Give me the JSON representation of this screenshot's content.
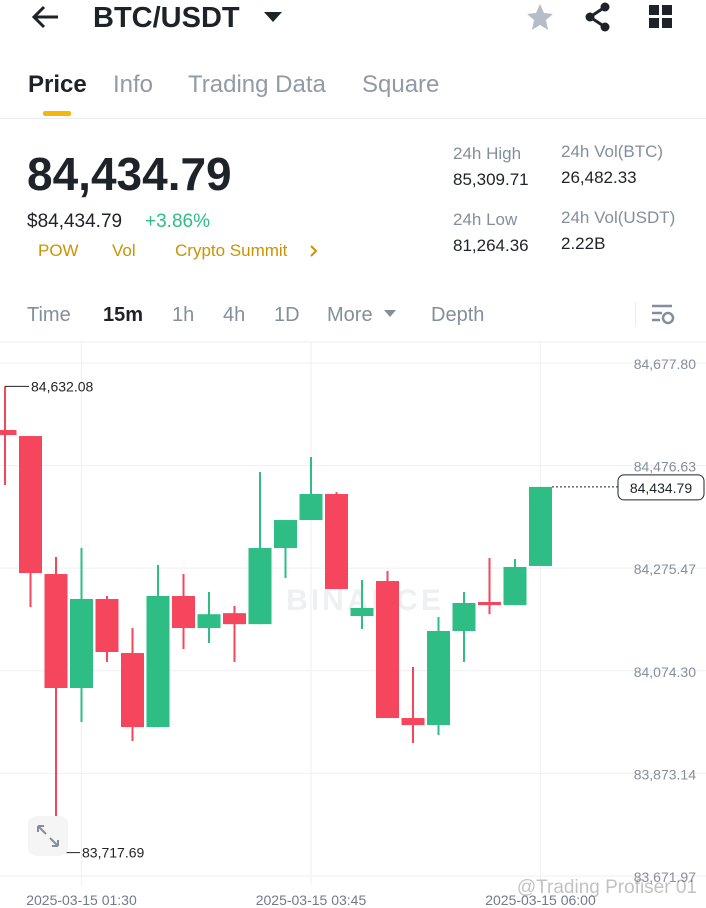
{
  "header": {
    "title": "BTC/USDT"
  },
  "tabs": [
    "Price",
    "Info",
    "Trading Data",
    "Square"
  ],
  "price": {
    "last": "84,434.79",
    "usd": "$84,434.79",
    "change": "+3.86%"
  },
  "tags": [
    "POW",
    "Vol",
    "Crypto Summit"
  ],
  "stats": [
    {
      "label": "24h High",
      "value": "85,309.71"
    },
    {
      "label": "24h Vol(BTC)",
      "value": "26,482.33"
    },
    {
      "label": "24h Low",
      "value": "81,264.36"
    },
    {
      "label": "24h Vol(USDT)",
      "value": "2.22B"
    }
  ],
  "intervals": [
    "Time",
    "15m",
    "1h",
    "4h",
    "1D",
    "More",
    "Depth"
  ],
  "watermark": "@Trading Profiser 01",
  "chart_data": {
    "type": "candlestick",
    "logo": "BINANCE",
    "categories": [
      null,
      null,
      null,
      "2025-03-15 01:30",
      null,
      null,
      null,
      null,
      null,
      null,
      null,
      null,
      "2025-03-15 03:45",
      null,
      null,
      null,
      null,
      null,
      null,
      null,
      null,
      "2025-03-15 06:00"
    ],
    "open": [
      84546.4,
      84534.6,
      84264.0,
      84040.5,
      84215.0,
      84109.1,
      83963.9,
      84220.9,
      84158.1,
      84187.3,
      84165.7,
      84315.0,
      84369.9,
      84420.9,
      84181.7,
      84250.3,
      83981.6,
      83967.9,
      84152.3,
      84209.1,
      84203.2,
      84279.8
    ],
    "high": [
      84632.08,
      84534.6,
      84297.4,
      84315.0,
      84220.9,
      84158.1,
      84281.7,
      84264.0,
      84228.7,
      84201.3,
      84464.0,
      84369.9,
      84493.5,
      84424.8,
      84252.3,
      84269.9,
      84081.7,
      84179.7,
      84228.7,
      84295.4,
      84293.4,
      84434.79
    ],
    "low": [
      84438.6,
      84199.3,
      83717.69,
      83973.9,
      84091.5,
      83936.5,
      83963.9,
      84116.9,
      84128.7,
      84091.5,
      84165.7,
      84256.2,
      84369.9,
      84234.6,
      84156.2,
      83981.6,
      83932.6,
      83948.3,
      84091.5,
      84185.2,
      84203.2,
      84279.8
    ],
    "close": [
      84536.6,
      84266.0,
      84040.5,
      84215.0,
      84111.1,
      83963.9,
      84220.9,
      84158.1,
      84185.2,
      84165.7,
      84315.0,
      84369.9,
      84420.9,
      84234.6,
      84197.4,
      83981.6,
      83967.9,
      84152.3,
      84207.2,
      84203.2,
      84277.8,
      84434.79
    ],
    "up_color": "#2ebd85",
    "down_color": "#f6465d",
    "ylim": [
      83654.2,
      84719.0
    ],
    "yticks": [
      {
        "value": 84677.8,
        "label": "84,677.80"
      },
      {
        "value": 84476.63,
        "label": "84,476.63"
      },
      {
        "value": 84275.47,
        "label": "84,275.47"
      },
      {
        "value": 84074.3,
        "label": "84,074.30"
      },
      {
        "value": 83873.14,
        "label": "83,873.14"
      },
      {
        "value": 83671.97,
        "label": "83,671.97"
      }
    ],
    "grid": true,
    "annotations": [
      {
        "value": 84632.08,
        "label": "84,632.08",
        "index": 0
      },
      {
        "value": 83717.69,
        "label": "83,717.69",
        "index": 2
      }
    ],
    "last_price": {
      "value": 84434.79,
      "label": "84,434.79"
    }
  }
}
